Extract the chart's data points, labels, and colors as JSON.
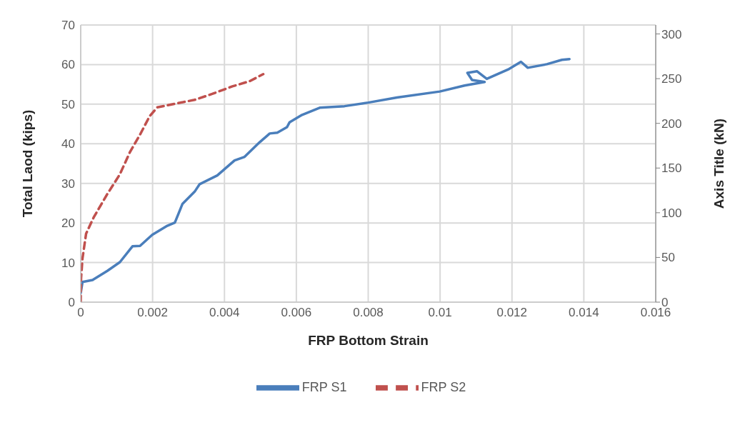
{
  "chart_data": {
    "type": "line",
    "xlabel": "FRP Bottom Strain",
    "ylabel": "Total Laod (kips)",
    "y2label": "Axis Title (kN)",
    "xlim": [
      0,
      0.016
    ],
    "xticks": [
      0,
      0.002,
      0.004,
      0.006,
      0.008,
      0.01,
      0.012,
      0.014,
      0.016
    ],
    "ylim": [
      0,
      70
    ],
    "yticks": [
      0,
      10,
      20,
      30,
      40,
      50,
      60,
      70
    ],
    "y2lim": [
      0,
      310
    ],
    "y2ticks": [
      0,
      50,
      100,
      150,
      200,
      250,
      300
    ],
    "grid": true,
    "legend": "bottom",
    "marker": "none",
    "series": [
      {
        "name": "FRP S1",
        "color": "#4a7ebb",
        "line_style": "solid",
        "x": [
          0,
          5e-05,
          0.00033,
          0.00074,
          0.00109,
          0.00144,
          0.00165,
          0.00199,
          0.00241,
          0.00262,
          0.00283,
          0.00317,
          0.00331,
          0.0038,
          0.00428,
          0.00456,
          0.00498,
          0.00526,
          0.00547,
          0.00574,
          0.00581,
          0.00616,
          0.00665,
          0.00734,
          0.008,
          0.0088,
          0.00999,
          0.01068,
          0.01124,
          0.01089,
          0.01076,
          0.01103,
          0.01117,
          0.0113,
          0.01192,
          0.01225,
          0.01244,
          0.01297,
          0.01339,
          0.0136
        ],
        "values": [
          2.3,
          5.1,
          5.6,
          7.9,
          10.1,
          14.1,
          14.2,
          17,
          19.3,
          20.1,
          24.8,
          27.9,
          29.8,
          32,
          35.8,
          36.7,
          40.4,
          42.6,
          42.8,
          44.2,
          45.4,
          47.3,
          49.1,
          49.5,
          50.4,
          51.7,
          53.2,
          54.7,
          55.6,
          56.1,
          57.9,
          58.3,
          57.3,
          56.4,
          58.9,
          60.7,
          59.2,
          60.1,
          61.2,
          61.4
        ]
      },
      {
        "name": "FRP S2",
        "color": "#c0504d",
        "line_style": "dashed",
        "x": [
          0,
          1e-05,
          5e-05,
          0.00015,
          0.00036,
          0.00074,
          0.00109,
          0.00137,
          0.00165,
          0.00192,
          0.00213,
          0.00262,
          0.00317,
          0.00366,
          0.00422,
          0.0047,
          0.00508
        ],
        "values": [
          0,
          6.1,
          11.1,
          17.3,
          21.4,
          27.3,
          32.3,
          37.9,
          42.3,
          47,
          49.2,
          50.1,
          51.1,
          52.6,
          54.5,
          55.8,
          57.6
        ]
      }
    ]
  }
}
